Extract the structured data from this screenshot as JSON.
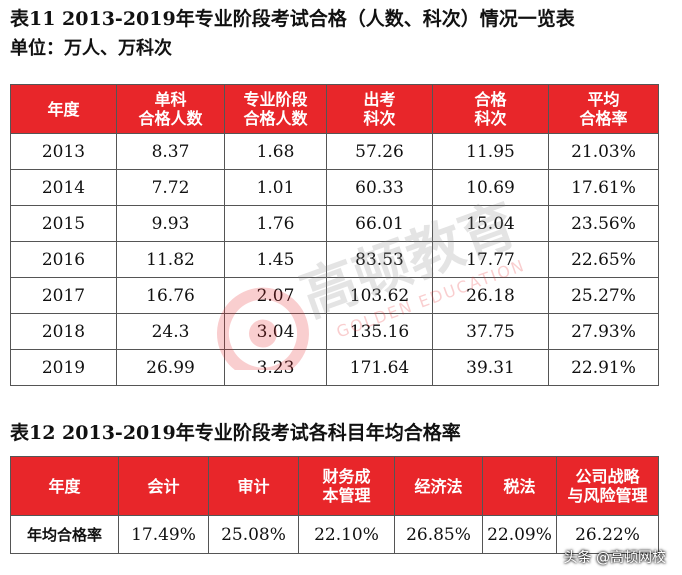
{
  "table11": {
    "title": "表11  2013-2019年专业阶段考试合格（人数、科次）情况一览表",
    "unit": "单位：万人、万科次",
    "headers": [
      [
        "年度"
      ],
      [
        "单科",
        "合格人数"
      ],
      [
        "专业阶段",
        "合格人数"
      ],
      [
        "出考",
        "科次"
      ],
      [
        "合格",
        "科次"
      ],
      [
        "平均",
        "合格率"
      ]
    ],
    "rows": [
      [
        "2013",
        "8.37",
        "1.68",
        "57.26",
        "11.95",
        "21.03%"
      ],
      [
        "2014",
        "7.72",
        "1.01",
        "60.33",
        "10.69",
        "17.61%"
      ],
      [
        "2015",
        "9.93",
        "1.76",
        "66.01",
        "15.04",
        "23.56%"
      ],
      [
        "2016",
        "11.82",
        "1.45",
        "83.53",
        "17.77",
        "22.65%"
      ],
      [
        "2017",
        "16.76",
        "2.07",
        "103.62",
        "26.18",
        "25.27%"
      ],
      [
        "2018",
        "24.3",
        "3.04",
        "135.16",
        "37.75",
        "27.93%"
      ],
      [
        "2019",
        "26.99",
        "3.23",
        "171.64",
        "39.31",
        "22.91%"
      ]
    ]
  },
  "table12": {
    "title": "表12  2013-2019年专业阶段考试各科目年均合格率",
    "headers": [
      [
        "年度"
      ],
      [
        "会计"
      ],
      [
        "审计"
      ],
      [
        "财务成",
        "本管理"
      ],
      [
        "经济法"
      ],
      [
        "税法"
      ],
      [
        "公司战略",
        "与风险管理"
      ]
    ],
    "row_label": "年均合格率",
    "values": [
      "17.49%",
      "25.08%",
      "22.10%",
      "26.85%",
      "22.09%",
      "26.22%"
    ]
  },
  "watermark": {
    "brand": "高顿教育",
    "sub": "GOLDEN EDUCATION"
  },
  "credit": "头条 @高顿网校"
}
